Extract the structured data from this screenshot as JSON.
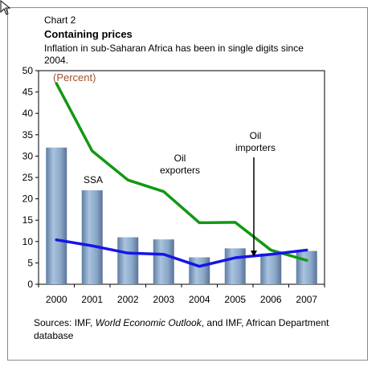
{
  "chart_data": {
    "type": "bar",
    "label": "Chart 2",
    "title": "Containing prices",
    "subtitle": "Inflation in sub-Saharan Africa has been in single digits since 2004.",
    "unit_note": "(Percent)",
    "categories": [
      "2000",
      "2001",
      "2002",
      "2003",
      "2004",
      "2005",
      "2006",
      "2007"
    ],
    "bars": {
      "name": "SSA",
      "values": [
        32,
        22,
        11,
        10.5,
        6.3,
        8.4,
        7.2,
        7.8
      ],
      "color": "#8aa8c8"
    },
    "series": [
      {
        "name": "Oil exporters",
        "values": [
          47,
          31.2,
          24.4,
          21.7,
          14.4,
          14.5,
          8,
          5.6
        ],
        "color": "#129812"
      },
      {
        "name": "Oil importers",
        "values": [
          10.4,
          9,
          7.3,
          7,
          4.2,
          6.2,
          7,
          8
        ],
        "color": "#1515e8"
      }
    ],
    "annotations": [
      {
        "target": "bars",
        "line1": "SSA",
        "line2": ""
      },
      {
        "target": "Oil exporters",
        "line1": "Oil",
        "line2": "exporters"
      },
      {
        "target": "Oil importers",
        "line1": "Oil",
        "line2": "importers"
      }
    ],
    "ylim": [
      0,
      50
    ],
    "yticks": [
      0,
      5,
      10,
      15,
      20,
      25,
      30,
      35,
      40,
      45,
      50
    ],
    "source_prefix": "Sources: IMF, ",
    "source_italic": "World Economic Outlook",
    "source_suffix": ", and IMF, African Department database"
  }
}
